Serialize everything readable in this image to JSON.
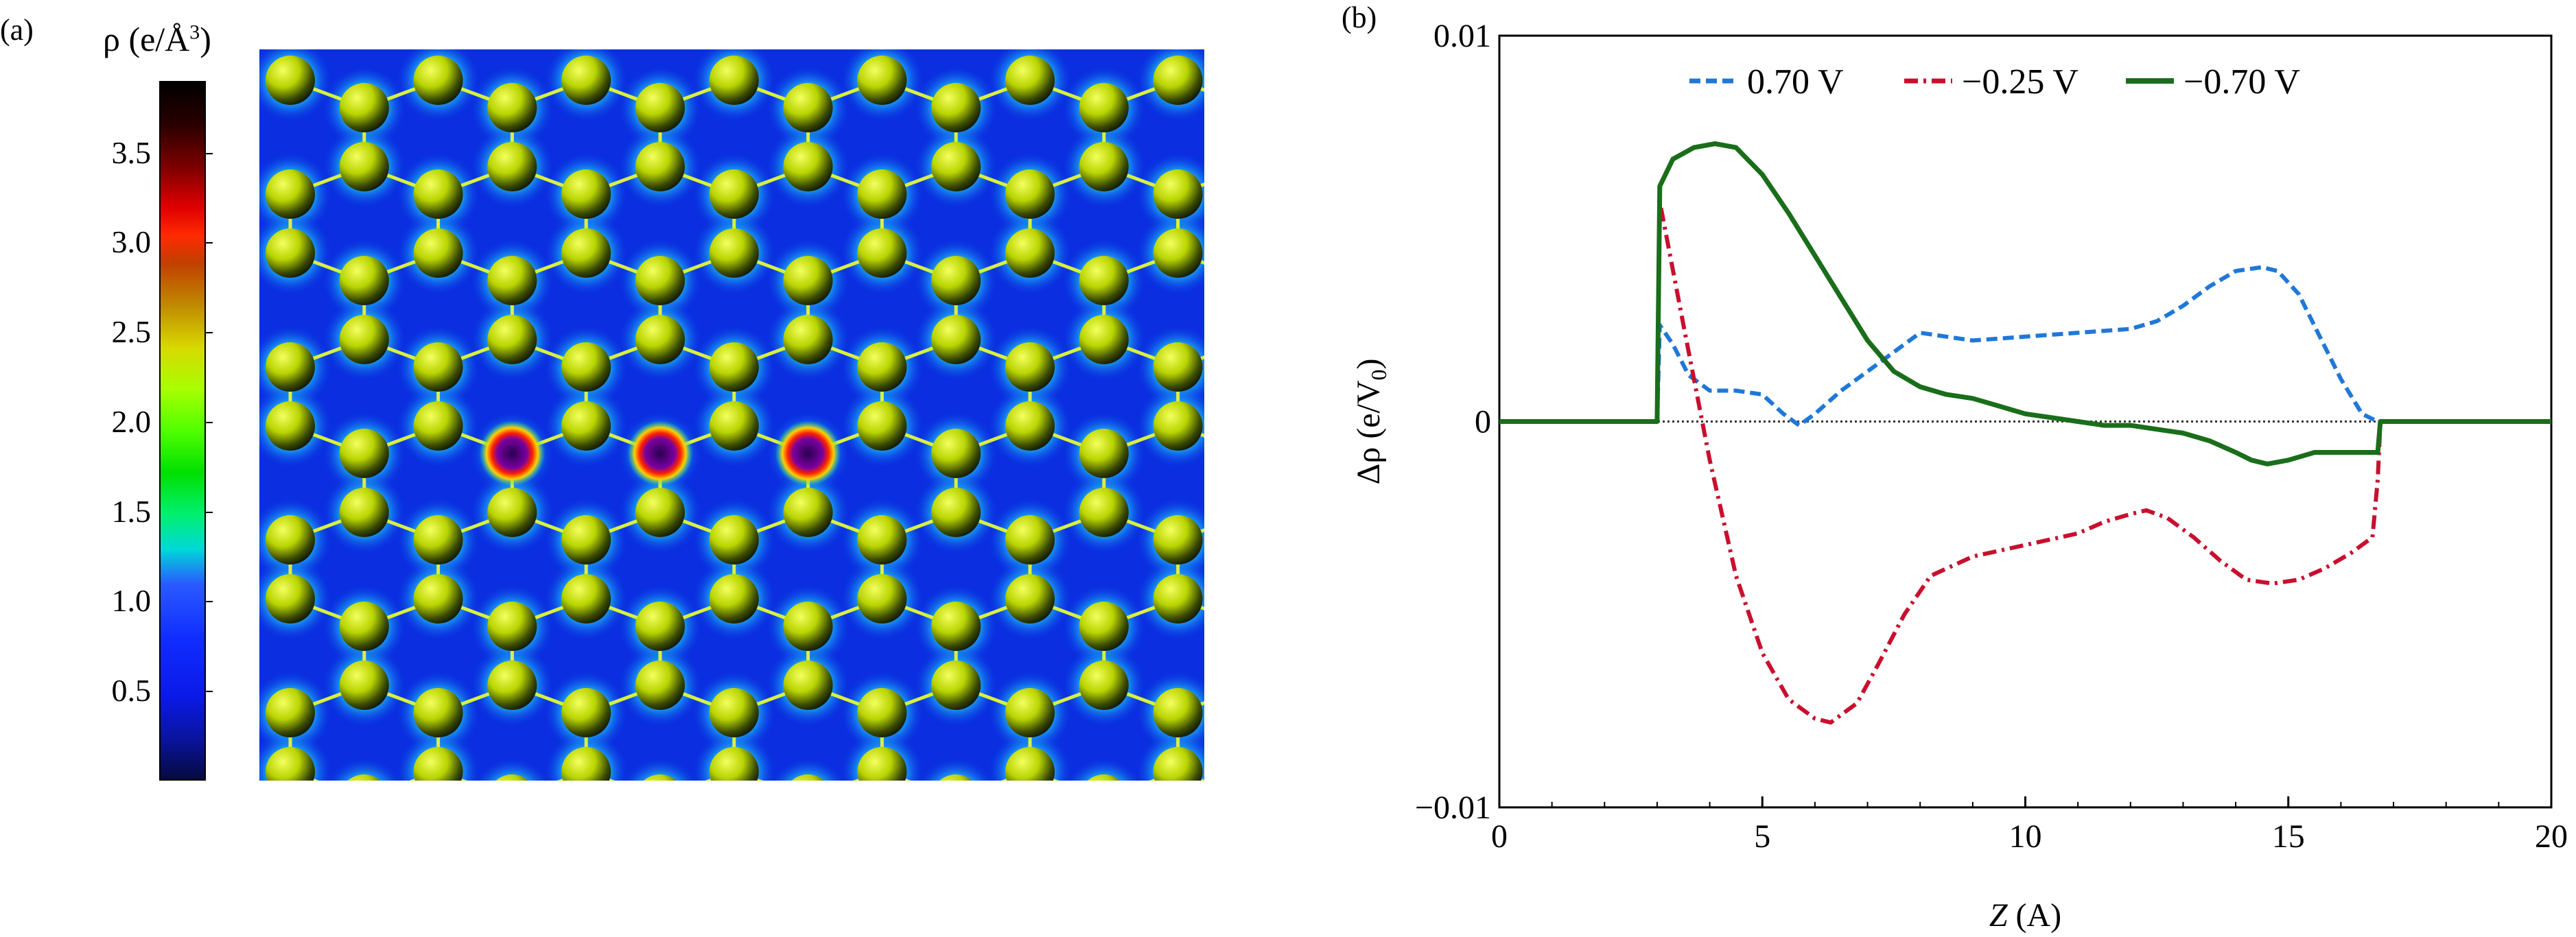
{
  "panel_a": {
    "label": "(a)",
    "colorbar": {
      "title": "ρ (e/Å",
      "title_sup": "3",
      "title_close": ")",
      "ticks": [
        "3.5",
        "3.0",
        "2.5",
        "2.0",
        "1.5",
        "1.0",
        "0.5"
      ],
      "tick_values": [
        3.5,
        3.0,
        2.5,
        2.0,
        1.5,
        1.0,
        0.5
      ],
      "range": [
        0,
        3.9
      ]
    },
    "colors": {
      "background": "#0a2ee0",
      "atom": "#c8e000",
      "atom_dark": "#1a1a00",
      "halo": "#00e0a0",
      "defect": "#ff2000"
    }
  },
  "panel_b": {
    "label": "(b)"
  },
  "chart_data": {
    "type": "line",
    "title": "",
    "xlabel": "Z",
    "xlabel_unit": "(A)",
    "ylabel": "Δρ (e/V",
    "ylabel_sub": "0",
    "ylabel_close": ")",
    "xlim": [
      0,
      20
    ],
    "ylim": [
      -0.01,
      0.01
    ],
    "xticks": [
      0,
      5,
      10,
      15,
      20
    ],
    "xtick_labels": [
      "0",
      "5",
      "10",
      "15",
      "20"
    ],
    "yticks": [
      -0.01,
      0,
      0.01
    ],
    "ytick_labels": [
      "−0.01",
      "0",
      "0.01"
    ],
    "legend_position": "top",
    "grid": false,
    "series": [
      {
        "name": "0.70 V",
        "color": "#1f78d8",
        "style": "dashed",
        "x": [
          0,
          3.0,
          3.05,
          3.3,
          3.6,
          4.0,
          4.5,
          5.0,
          5.4,
          5.7,
          6.0,
          6.5,
          7.0,
          7.5,
          8.0,
          8.5,
          9.0,
          10.0,
          11.0,
          12.0,
          12.5,
          13.0,
          13.5,
          14.0,
          14.5,
          14.8,
          15.2,
          15.6,
          16.0,
          16.4,
          16.7,
          17.0,
          20
        ],
        "y": [
          0,
          0,
          0.0025,
          0.002,
          0.0012,
          0.0008,
          0.0008,
          0.0007,
          0.0002,
          -0.0001,
          0.0002,
          0.0008,
          0.0013,
          0.0018,
          0.0023,
          0.0022,
          0.0021,
          0.0022,
          0.0023,
          0.0024,
          0.0026,
          0.003,
          0.0035,
          0.0039,
          0.004,
          0.0039,
          0.0033,
          0.0022,
          0.0011,
          0.0002,
          0,
          0,
          0
        ]
      },
      {
        "name": "−0.25 V",
        "color": "#c8102e",
        "style": "dashdot",
        "x": [
          0,
          3.0,
          3.05,
          3.5,
          4.0,
          4.5,
          5.0,
          5.5,
          6.0,
          6.3,
          6.8,
          7.2,
          7.7,
          8.2,
          9.0,
          10.0,
          11.0,
          11.5,
          12.0,
          12.3,
          12.7,
          13.2,
          13.7,
          14.2,
          14.7,
          15.2,
          15.7,
          16.2,
          16.6,
          16.7,
          16.75,
          17.0,
          20
        ],
        "y": [
          0,
          0,
          0.0057,
          0.0025,
          -0.001,
          -0.004,
          -0.006,
          -0.0072,
          -0.0077,
          -0.0078,
          -0.0073,
          -0.0063,
          -0.005,
          -0.004,
          -0.0035,
          -0.0032,
          -0.0029,
          -0.0026,
          -0.0024,
          -0.0023,
          -0.0025,
          -0.003,
          -0.0036,
          -0.0041,
          -0.0042,
          -0.0041,
          -0.0038,
          -0.0034,
          -0.003,
          -0.0015,
          0,
          0,
          0
        ]
      },
      {
        "name": "−0.70 V",
        "color": "#1a6e1a",
        "style": "solid",
        "x": [
          0,
          3.0,
          3.05,
          3.3,
          3.7,
          4.1,
          4.5,
          5.0,
          5.5,
          6.0,
          6.5,
          7.0,
          7.5,
          8.0,
          8.5,
          9.0,
          9.5,
          10.0,
          10.5,
          11.0,
          11.5,
          12.0,
          12.5,
          13.0,
          13.5,
          14.0,
          14.3,
          14.6,
          15.0,
          15.5,
          16.0,
          16.5,
          16.7,
          16.75,
          17.0,
          20
        ],
        "y": [
          0,
          0,
          0.0061,
          0.0068,
          0.0071,
          0.0072,
          0.0071,
          0.0064,
          0.0054,
          0.0043,
          0.0032,
          0.0021,
          0.0013,
          0.0009,
          0.0007,
          0.0006,
          0.0004,
          0.0002,
          0.0001,
          0.0,
          -0.0001,
          -0.0001,
          -0.0002,
          -0.0003,
          -0.0005,
          -0.0008,
          -0.001,
          -0.0011,
          -0.001,
          -0.0008,
          -0.0008,
          -0.0008,
          -0.0008,
          0,
          0,
          0
        ]
      }
    ]
  }
}
